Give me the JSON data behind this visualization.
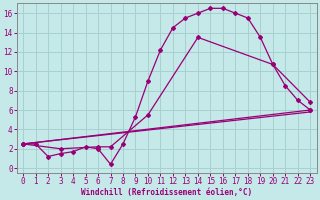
{
  "xlabel": "Windchill (Refroidissement éolien,°C)",
  "bg_color": "#c5e8e8",
  "line_color": "#990077",
  "grid_color": "#a8d0d0",
  "spine_color": "#888888",
  "ylim": [
    -0.5,
    17
  ],
  "xlim": [
    -0.5,
    23.5
  ],
  "yticks": [
    0,
    2,
    4,
    6,
    8,
    10,
    12,
    14,
    16
  ],
  "xticks": [
    0,
    1,
    2,
    3,
    4,
    5,
    6,
    7,
    8,
    9,
    10,
    11,
    12,
    13,
    14,
    15,
    16,
    17,
    18,
    19,
    20,
    21,
    22,
    23
  ],
  "line1_x": [
    0,
    1,
    2,
    3,
    4,
    5,
    6,
    7,
    8,
    9,
    10,
    11,
    12,
    13,
    14,
    15,
    16,
    17,
    18,
    19,
    20,
    21,
    22,
    23
  ],
  "line1_y": [
    2.5,
    2.5,
    1.2,
    1.5,
    1.7,
    2.2,
    2.0,
    0.4,
    2.5,
    5.3,
    9.0,
    12.2,
    14.5,
    15.5,
    16.0,
    16.5,
    16.5,
    16.0,
    15.5,
    13.5,
    10.7,
    8.5,
    7.0,
    6.0
  ],
  "line2_x": [
    0,
    3,
    6,
    7,
    10,
    14,
    20,
    23
  ],
  "line2_y": [
    2.5,
    2.0,
    2.2,
    2.2,
    5.5,
    13.5,
    10.7,
    6.8
  ],
  "line3_x": [
    0,
    23
  ],
  "line3_y": [
    2.5,
    6.0
  ],
  "line4_x": [
    0,
    23
  ],
  "line4_y": [
    2.5,
    5.8
  ],
  "tick_fontsize": 5.5,
  "xlabel_fontsize": 5.5
}
